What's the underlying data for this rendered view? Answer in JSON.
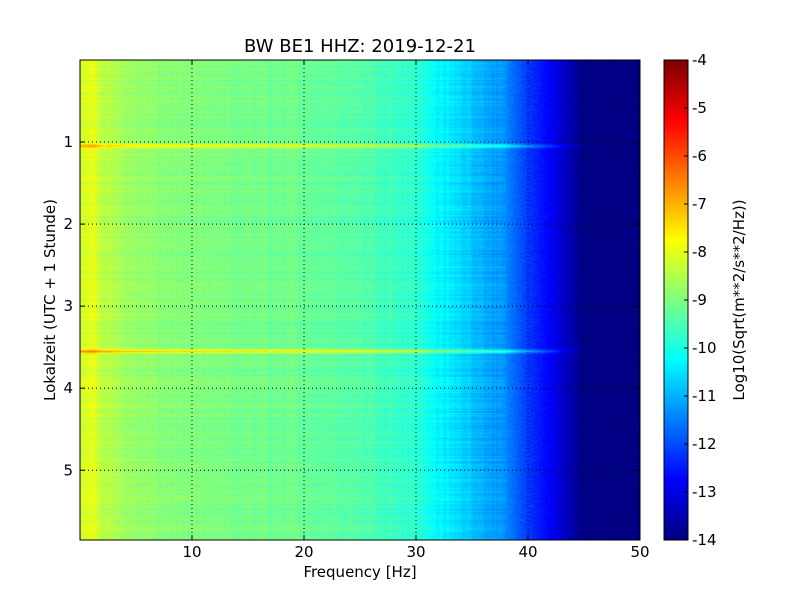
{
  "chart_data": {
    "type": "heatmap",
    "title": "BW BE1 HHZ: 2019-12-21",
    "xlabel": "Frequency [Hz]",
    "ylabel": "Lokalzeit (UTC + 1 Stunde)",
    "xlim": [
      0,
      50
    ],
    "ylim": [
      5.85,
      0
    ],
    "x_ticks": [
      "10",
      "20",
      "30",
      "40",
      "50"
    ],
    "x_tick_values": [
      10,
      20,
      30,
      40,
      50
    ],
    "y_ticks": [
      "1",
      "2",
      "3",
      "4",
      "5"
    ],
    "y_tick_values": [
      1,
      2,
      3,
      4,
      5
    ],
    "grid": true,
    "grid_style": "dotted",
    "colormap": "jet",
    "colorbar": {
      "label": "Log10(Sqrt(m**2/s**2/Hz))",
      "min": -14,
      "max": -4,
      "ticks": [
        "-4",
        "-5",
        "-6",
        "-7",
        "-8",
        "-9",
        "-10",
        "-11",
        "-12",
        "-13",
        "-14"
      ],
      "tick_values": [
        -4,
        -5,
        -6,
        -7,
        -8,
        -9,
        -10,
        -11,
        -12,
        -13,
        -14
      ]
    },
    "spectrum_profile": {
      "frequency_hz": [
        0,
        1,
        2,
        5,
        10,
        15,
        20,
        25,
        30,
        32,
        35,
        38,
        40,
        42,
        44,
        45,
        50
      ],
      "log10_psd": [
        -8.3,
        -7.9,
        -8.4,
        -8.8,
        -9.0,
        -9.1,
        -9.2,
        -9.4,
        -9.8,
        -10.3,
        -10.8,
        -11.4,
        -12.2,
        -12.8,
        -13.6,
        -14,
        -14
      ]
    },
    "bands": [
      {
        "time_h": 1.05,
        "log10_psd_offset": 1.4,
        "fmax_hz": 46
      },
      {
        "time_h": 3.55,
        "log10_psd_offset": 1.6,
        "fmax_hz": 46
      },
      {
        "time_h": 0.37,
        "log10_psd_offset": 0.9,
        "fmax_hz": 3
      }
    ]
  }
}
